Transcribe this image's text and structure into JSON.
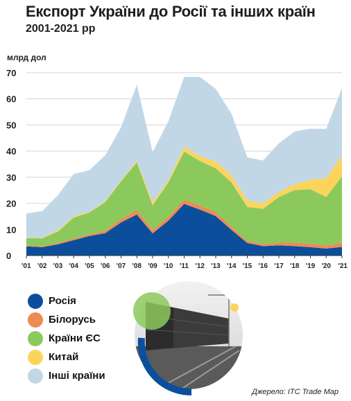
{
  "title": "Експорт України до Росії та інших країн",
  "subtitle": "2001-2021 рр",
  "source": "Джерело: ITC Trade Map",
  "colors": {
    "russia": "#0b4f9c",
    "belarus": "#ef8a54",
    "eu": "#8cc95c",
    "china": "#fcd45c",
    "other": "#c2d7e6",
    "photo_bg": "#4a4a4a",
    "photo_ring": "#0b4f9c"
  },
  "legend": [
    {
      "key": "russia",
      "label": "Росія"
    },
    {
      "key": "belarus",
      "label": "Білорусь"
    },
    {
      "key": "eu",
      "label": "Країни ЄС"
    },
    {
      "key": "china",
      "label": "Китай"
    },
    {
      "key": "other",
      "label": "Інші країни"
    }
  ],
  "chart_data": {
    "type": "area",
    "stacked": true,
    "ylabel": "млрд дол",
    "ylim": [
      0,
      70
    ],
    "yticks": [
      0,
      10,
      20,
      30,
      40,
      50,
      60,
      70
    ],
    "grid": true,
    "x": [
      2001,
      2002,
      2003,
      2004,
      2005,
      2006,
      2007,
      2008,
      2009,
      2010,
      2011,
      2012,
      2013,
      2014,
      2015,
      2016,
      2017,
      2018,
      2019,
      2020,
      2021
    ],
    "x_tick_labels": [
      "'01",
      "'02",
      "'03",
      "'04",
      "'05",
      "'06",
      "'07",
      "'08",
      "'09",
      "'10",
      "'11",
      "'12",
      "'13",
      "'14",
      "'15",
      "'16",
      "'17",
      "'18",
      "'19",
      "'20",
      "'21"
    ],
    "series": [
      {
        "name": "Росія",
        "key": "russia",
        "values": [
          3.5,
          3.2,
          4.3,
          5.9,
          7.5,
          8.6,
          12.7,
          15.7,
          8.5,
          13.4,
          19.8,
          17.6,
          15.1,
          9.8,
          4.8,
          3.6,
          3.9,
          3.6,
          3.2,
          2.7,
          3.3
        ]
      },
      {
        "name": "Білорусь",
        "key": "belarus",
        "values": [
          0.4,
          0.4,
          0.5,
          0.6,
          0.7,
          0.9,
          1.3,
          1.7,
          1.2,
          1.5,
          1.6,
          1.6,
          1.5,
          1.2,
          0.8,
          0.8,
          1.0,
          1.3,
          1.4,
          1.1,
          1.6
        ]
      },
      {
        "name": "Країни ЄС",
        "key": "eu",
        "values": [
          2.8,
          3.0,
          4.4,
          8.0,
          8.3,
          11.0,
          14.4,
          18.3,
          9.5,
          13.1,
          18.4,
          17.0,
          16.8,
          17.0,
          13.0,
          13.5,
          17.5,
          20.2,
          20.8,
          18.6,
          25.4
        ]
      },
      {
        "name": "Китай",
        "key": "china",
        "values": [
          0.1,
          0.2,
          0.5,
          0.5,
          0.3,
          0.3,
          0.4,
          0.6,
          1.1,
          0.8,
          1.9,
          1.8,
          2.7,
          2.7,
          2.4,
          2.0,
          2.0,
          2.2,
          3.6,
          7.1,
          8.0
        ]
      },
      {
        "name": "Інші країни",
        "key": "other",
        "values": [
          9.3,
          10.2,
          13.4,
          16.2,
          15.9,
          17.6,
          20.3,
          29.1,
          19.3,
          22.6,
          26.7,
          30.4,
          27.7,
          23.6,
          16.6,
          16.5,
          18.6,
          20.2,
          19.6,
          19.0,
          25.8
        ]
      }
    ]
  }
}
